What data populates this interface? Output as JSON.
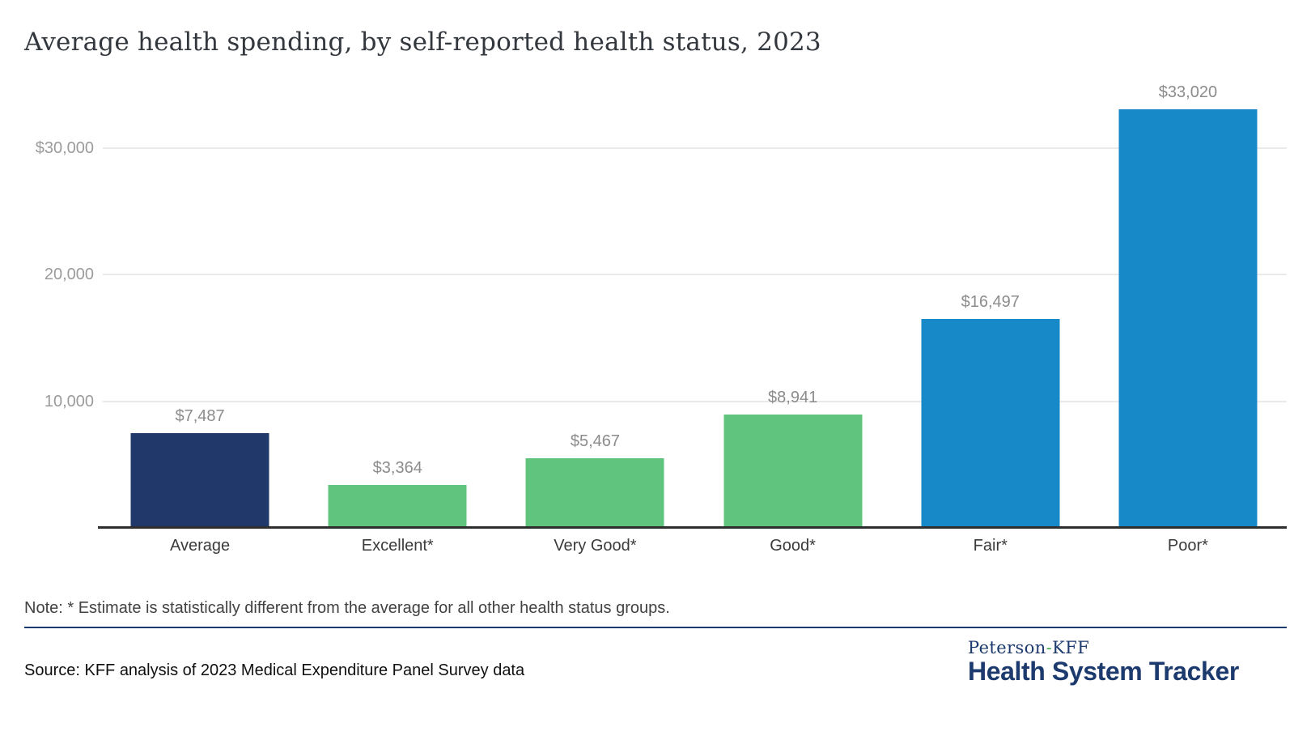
{
  "title": "Average health spending, by self-reported health status, 2023",
  "chart_data": {
    "type": "bar",
    "categories": [
      "Average",
      "Excellent*",
      "Very Good*",
      "Good*",
      "Fair*",
      "Poor*"
    ],
    "values": [
      7487,
      3364,
      5467,
      8941,
      16497,
      33020
    ],
    "value_labels": [
      "$7,487",
      "$3,364",
      "$5,467",
      "$8,941",
      "$16,497",
      "$33,020"
    ],
    "bar_colors": [
      "#21396A",
      "#60C47E",
      "#60C47E",
      "#60C47E",
      "#1789C9",
      "#1789C9"
    ],
    "y_ticks": [
      {
        "value": 10000,
        "label": "10,000"
      },
      {
        "value": 20000,
        "label": "20,000"
      },
      {
        "value": 30000,
        "label": "$30,000"
      }
    ],
    "ylim": [
      0,
      35000
    ],
    "xlabel": "",
    "ylabel": "",
    "grid": "horizontal",
    "legend": "none",
    "title": "Average health spending, by self-reported health status, 2023"
  },
  "note": "Note: * Estimate is statistically different from the average for all other health status groups.",
  "source": "Source: KFF analysis of 2023 Medical Expenditure Panel Survey data",
  "logo": {
    "top_prefix": "Peterson",
    "top_hyphen": "-",
    "top_suffix": "KFF",
    "bottom": "Health System Tracker"
  },
  "colors": {
    "navy_bar": "#21396A",
    "green_bar": "#60C47E",
    "blue_bar": "#1789C9",
    "brand_navy": "#1C3A6E",
    "brand_green": "#44A94F",
    "gridline": "#EAEAEA",
    "axis_line": "#2E2E2E",
    "tick_label": "#9B9B9B",
    "value_label": "#8C8C8C",
    "category_label": "#3B3B3B",
    "title_text": "#33383E"
  }
}
